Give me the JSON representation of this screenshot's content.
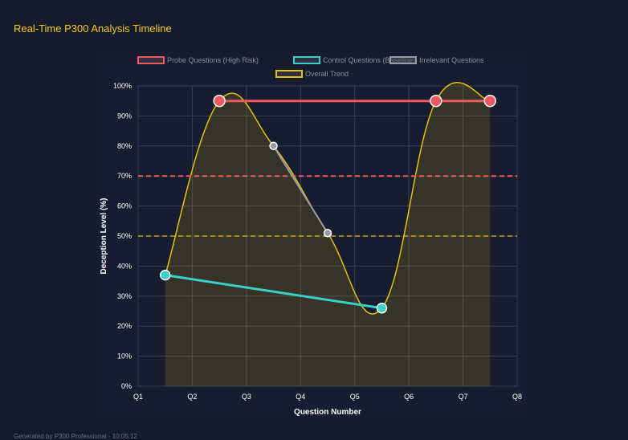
{
  "header": {
    "title": "Real-Time P300 Analysis Timeline"
  },
  "footer": {
    "text": "Generated by P300 Professional - 10:05:12"
  },
  "chart_data": {
    "type": "line",
    "xlabel": "Question Number",
    "ylabel": "Deception Level (%)",
    "x_ticks": [
      "Q1",
      "Q2",
      "Q3",
      "Q4",
      "Q5",
      "Q6",
      "Q7",
      "Q8"
    ],
    "y_ticks": [
      "0%",
      "10%",
      "20%",
      "30%",
      "40%",
      "50%",
      "60%",
      "70%",
      "80%",
      "90%",
      "100%"
    ],
    "xlim": [
      1,
      8
    ],
    "ylim": [
      0,
      100
    ],
    "grid": true,
    "legend": "top",
    "series": [
      {
        "name": "Probe Questions (High Risk)",
        "color": "#f0595f",
        "x": [
          2.5,
          6.5,
          7.5
        ],
        "values": [
          95,
          95,
          95
        ]
      },
      {
        "name": "Control Questions (Baseline)",
        "color": "#3ccfc4",
        "x": [
          1.5,
          5.5
        ],
        "values": [
          37,
          26
        ]
      },
      {
        "name": "Irrelevant Questions",
        "color": "#9a9aa6",
        "x": [
          3.5,
          4.5
        ],
        "values": [
          80,
          51
        ]
      },
      {
        "name": "Overall Trend",
        "color": "#e5c100",
        "fill": true,
        "x": [
          1.5,
          2.5,
          3.5,
          4.5,
          5.5,
          6.5,
          7.5
        ],
        "values": [
          37,
          95,
          80,
          51,
          26,
          95,
          95
        ]
      }
    ],
    "thresholds": [
      {
        "value": 70,
        "color": "#f0595f",
        "style": "dashed"
      },
      {
        "value": 50,
        "color": "#e5c100",
        "style": "dashed"
      }
    ]
  }
}
